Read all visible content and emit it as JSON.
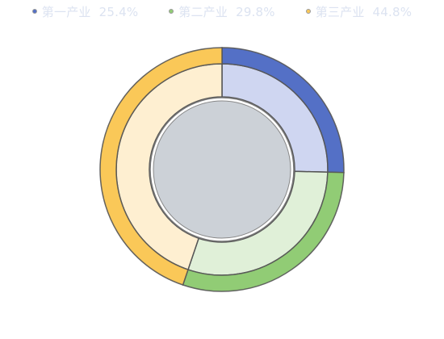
{
  "chart_data": {
    "type": "pie",
    "subtype": "nested-donut",
    "series": [
      {
        "name": "第一产业",
        "value": 25.4,
        "color": "#5470c6",
        "inner_color": "#cfd6f1"
      },
      {
        "name": "第二产业",
        "value": 29.8,
        "color": "#91cc75",
        "inner_color": "#e0f0d8"
      },
      {
        "name": "第三产业",
        "value": 44.8,
        "color": "#fac858",
        "inner_color": "#feefd1"
      }
    ],
    "value_suffix": "%",
    "legend_position": "top-center",
    "center_fill_color": "#ccd1d7",
    "border_color": "#555555"
  }
}
